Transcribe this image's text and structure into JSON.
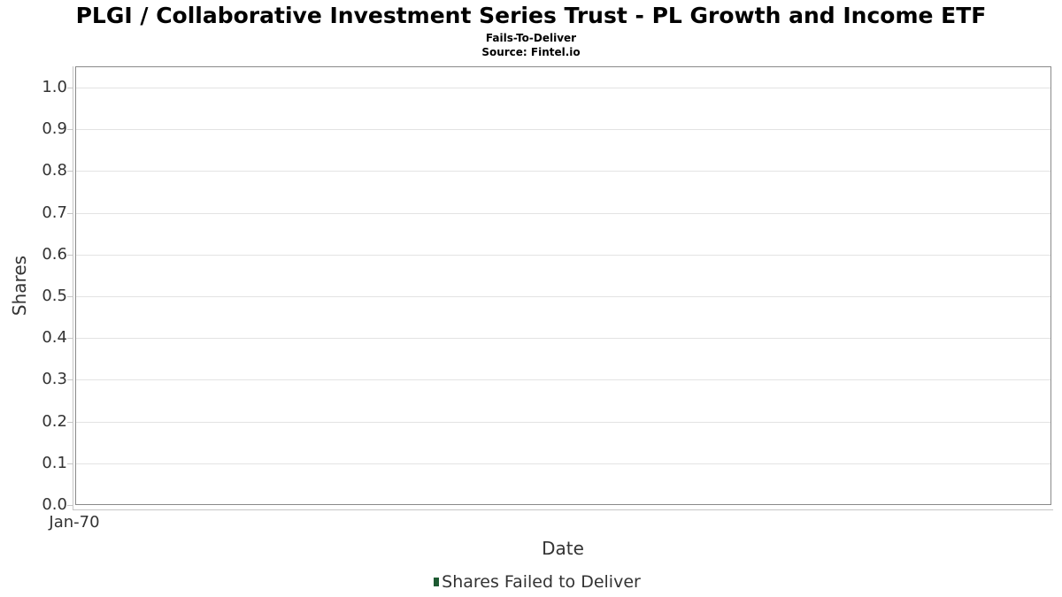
{
  "chart_data": {
    "type": "bar",
    "title": "PLGI / Collaborative Investment Series Trust - PL Growth and Income ETF",
    "subtitle": "Fails-To-Deliver",
    "source": "Source: Fintel.io",
    "xlabel": "Date",
    "ylabel": "Shares",
    "x_tick_labels": [
      "Jan-70"
    ],
    "y_tick_labels": [
      "0.0",
      "0.1",
      "0.2",
      "0.3",
      "0.4",
      "0.5",
      "0.6",
      "0.7",
      "0.8",
      "0.9",
      "1.0"
    ],
    "ylim": [
      0,
      1.05
    ],
    "grid": true,
    "legend_position": "bottom",
    "series": [
      {
        "name": "Shares Failed to Deliver",
        "color": "#1e5a32",
        "values": []
      }
    ]
  },
  "colors": {
    "legend_marker": "#1e5a32",
    "grid_line": "#e3e3e3",
    "axis_line": "#c6c6c6",
    "plot_border": "#8a8a8a",
    "text": "#333333"
  }
}
